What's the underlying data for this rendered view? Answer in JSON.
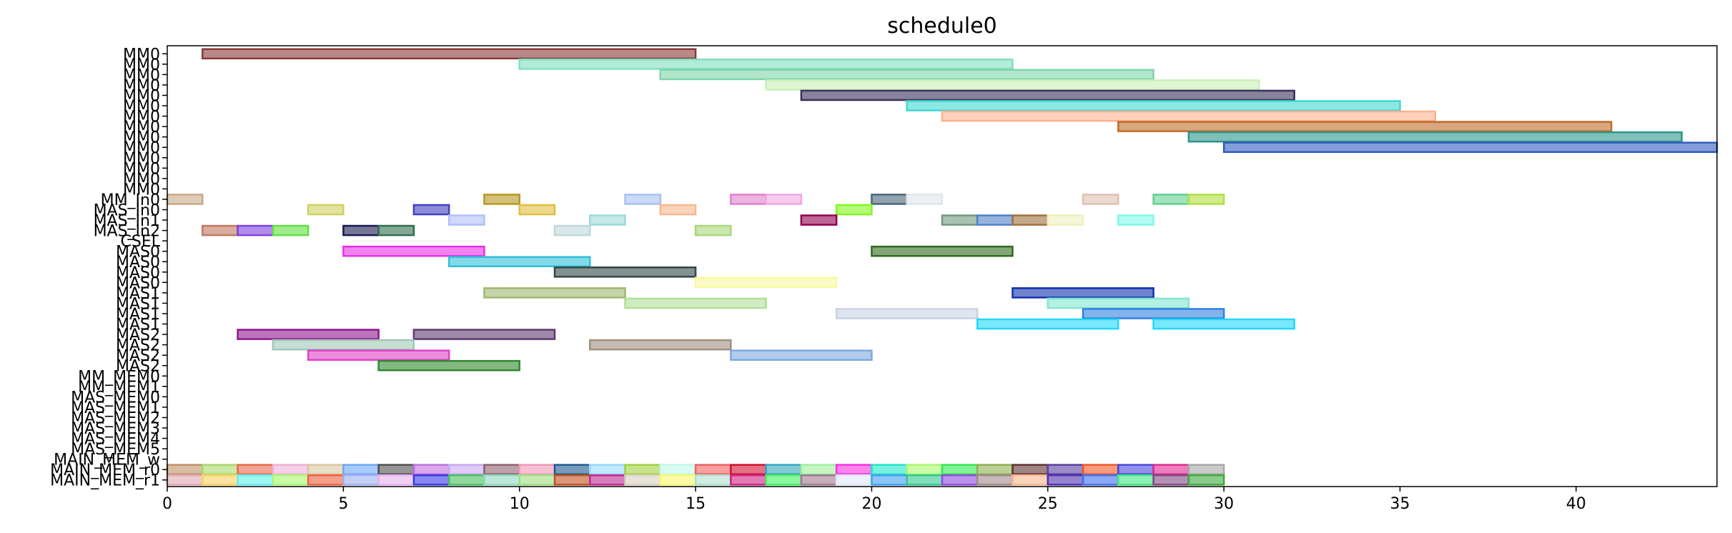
{
  "chart_data": {
    "type": "bar",
    "orientation": "horizontal",
    "title": "schedule0",
    "xlabel": "",
    "ylabel": "",
    "xlim": [
      0,
      44
    ],
    "xticks": [
      0,
      5,
      10,
      15,
      20,
      25,
      30,
      35,
      40
    ],
    "grid": false,
    "legend": "none",
    "categories": [
      "MM0",
      "MM0",
      "MM0",
      "MM0",
      "MM0",
      "MM0",
      "MM0",
      "MM0",
      "MM0",
      "MM0",
      "MM0",
      "MM0",
      "MM0",
      "MM0",
      "MM_In0",
      "MAS_In0",
      "MAS_In1",
      "MAS_In2",
      "CSEL",
      "MAS0",
      "MAS0",
      "MAS0",
      "MAS0",
      "MAS1",
      "MAS1",
      "MAS1",
      "MAS1",
      "MAS2",
      "MAS2",
      "MAS2",
      "MAS2",
      "MM_MEM0",
      "MM_MEM1",
      "MAS_MEM0",
      "MAS_MEM1",
      "MAS_MEM2",
      "MAS_MEM3",
      "MAS_MEM4",
      "MAS_MEM5",
      "MAIN_MEM_w",
      "MAIN_MEM_r0",
      "MAIN_MEM_r1"
    ],
    "bars": [
      {
        "row": 0,
        "start": 1,
        "end": 15,
        "color": "#8b3a3a"
      },
      {
        "row": 1,
        "start": 10,
        "end": 24,
        "color": "#7fe0c0"
      },
      {
        "row": 2,
        "start": 14,
        "end": 28,
        "color": "#7ed6aa"
      },
      {
        "row": 3,
        "start": 17,
        "end": 31,
        "color": "#c8f0b8"
      },
      {
        "row": 4,
        "start": 18,
        "end": 32,
        "color": "#3a2f5a"
      },
      {
        "row": 5,
        "start": 21,
        "end": 35,
        "color": "#40d8d0"
      },
      {
        "row": 6,
        "start": 22,
        "end": 36,
        "color": "#ffb090"
      },
      {
        "row": 7,
        "start": 27,
        "end": 41,
        "color": "#c06a28"
      },
      {
        "row": 8,
        "start": 29,
        "end": 43,
        "color": "#2a9688"
      },
      {
        "row": 9,
        "start": 30,
        "end": 44,
        "color": "#2e5cc0"
      },
      {
        "row": 14,
        "start": 0,
        "end": 1,
        "color": "#c8a888"
      },
      {
        "row": 14,
        "start": 9,
        "end": 10,
        "color": "#b89820"
      },
      {
        "row": 14,
        "start": 13,
        "end": 14,
        "color": "#a8c0f0"
      },
      {
        "row": 14,
        "start": 16,
        "end": 17,
        "color": "#e080c8"
      },
      {
        "row": 14,
        "start": 17,
        "end": 18,
        "color": "#f0a8e0"
      },
      {
        "row": 14,
        "start": 20,
        "end": 21,
        "color": "#4a6478"
      },
      {
        "row": 14,
        "start": 21,
        "end": 22,
        "color": "#e0e4ec"
      },
      {
        "row": 14,
        "start": 26,
        "end": 27,
        "color": "#e0c0b0"
      },
      {
        "row": 14,
        "start": 28,
        "end": 29,
        "color": "#60d090"
      },
      {
        "row": 14,
        "start": 29,
        "end": 30,
        "color": "#b0e040"
      },
      {
        "row": 15,
        "start": 4,
        "end": 5,
        "color": "#d0d060"
      },
      {
        "row": 15,
        "start": 7,
        "end": 8,
        "color": "#4040c0"
      },
      {
        "row": 15,
        "start": 10,
        "end": 11,
        "color": "#e0c040"
      },
      {
        "row": 15,
        "start": 14,
        "end": 15,
        "color": "#f8b890"
      },
      {
        "row": 15,
        "start": 19,
        "end": 20,
        "color": "#80f820"
      },
      {
        "row": 16,
        "start": 8,
        "end": 9,
        "color": "#b0c0f8"
      },
      {
        "row": 16,
        "start": 12,
        "end": 13,
        "color": "#a0d8d8"
      },
      {
        "row": 16,
        "start": 18,
        "end": 19,
        "color": "#900050"
      },
      {
        "row": 16,
        "start": 22,
        "end": 23,
        "color": "#709880"
      },
      {
        "row": 16,
        "start": 23,
        "end": 24,
        "color": "#5080c8"
      },
      {
        "row": 16,
        "start": 24,
        "end": 25,
        "color": "#a07040"
      },
      {
        "row": 16,
        "start": 25,
        "end": 26,
        "color": "#f0f0c0"
      },
      {
        "row": 16,
        "start": 27,
        "end": 28,
        "color": "#80f8e8"
      },
      {
        "row": 17,
        "start": 1,
        "end": 2,
        "color": "#c07860"
      },
      {
        "row": 17,
        "start": 2,
        "end": 3,
        "color": "#8040e0"
      },
      {
        "row": 17,
        "start": 3,
        "end": 4,
        "color": "#60e040"
      },
      {
        "row": 17,
        "start": 5,
        "end": 6,
        "color": "#1a1a50"
      },
      {
        "row": 17,
        "start": 6,
        "end": 7,
        "color": "#307050"
      },
      {
        "row": 17,
        "start": 11,
        "end": 12,
        "color": "#c0d8d8"
      },
      {
        "row": 17,
        "start": 15,
        "end": 16,
        "color": "#a8d878"
      },
      {
        "row": 19,
        "start": 5,
        "end": 9,
        "color": "#e830e8"
      },
      {
        "row": 19,
        "start": 20,
        "end": 24,
        "color": "#306a20"
      },
      {
        "row": 20,
        "start": 8,
        "end": 12,
        "color": "#30c0d8"
      },
      {
        "row": 21,
        "start": 11,
        "end": 15,
        "color": "#304848"
      },
      {
        "row": 22,
        "start": 15,
        "end": 19,
        "color": "#f8f8a0"
      },
      {
        "row": 23,
        "start": 9,
        "end": 13,
        "color": "#a0b870"
      },
      {
        "row": 23,
        "start": 24,
        "end": 28,
        "color": "#1030b0"
      },
      {
        "row": 24,
        "start": 13,
        "end": 17,
        "color": "#b0e098"
      },
      {
        "row": 24,
        "start": 25,
        "end": 29,
        "color": "#80e8d0"
      },
      {
        "row": 25,
        "start": 19,
        "end": 23,
        "color": "#c8d4e4"
      },
      {
        "row": 25,
        "start": 26,
        "end": 30,
        "color": "#3080e0"
      },
      {
        "row": 26,
        "start": 23,
        "end": 27,
        "color": "#20d8f8"
      },
      {
        "row": 26,
        "start": 28,
        "end": 32,
        "color": "#20d8f8"
      },
      {
        "row": 27,
        "start": 2,
        "end": 6,
        "color": "#901890"
      },
      {
        "row": 27,
        "start": 7,
        "end": 11,
        "color": "#603870"
      },
      {
        "row": 28,
        "start": 3,
        "end": 7,
        "color": "#a0c8b8"
      },
      {
        "row": 28,
        "start": 12,
        "end": 16,
        "color": "#a09080"
      },
      {
        "row": 29,
        "start": 4,
        "end": 8,
        "color": "#e040c8"
      },
      {
        "row": 29,
        "start": 16,
        "end": 20,
        "color": "#80a8e0"
      },
      {
        "row": 30,
        "start": 6,
        "end": 10,
        "color": "#308830"
      },
      {
        "row": 40,
        "start": 0,
        "end": 1,
        "color": "#c09068"
      },
      {
        "row": 40,
        "start": 1,
        "end": 2,
        "color": "#a8d868"
      },
      {
        "row": 40,
        "start": 2,
        "end": 3,
        "color": "#e86848"
      },
      {
        "row": 40,
        "start": 3,
        "end": 4,
        "color": "#f0b0d8"
      },
      {
        "row": 40,
        "start": 4,
        "end": 5,
        "color": "#d8c8a0"
      },
      {
        "row": 40,
        "start": 5,
        "end": 6,
        "color": "#70a8f8"
      },
      {
        "row": 40,
        "start": 6,
        "end": 7,
        "color": "#505050"
      },
      {
        "row": 40,
        "start": 7,
        "end": 8,
        "color": "#c070e0"
      },
      {
        "row": 40,
        "start": 8,
        "end": 9,
        "color": "#c8a8f0"
      },
      {
        "row": 40,
        "start": 9,
        "end": 10,
        "color": "#906070"
      },
      {
        "row": 40,
        "start": 10,
        "end": 11,
        "color": "#f098b8"
      },
      {
        "row": 40,
        "start": 11,
        "end": 12,
        "color": "#205890"
      },
      {
        "row": 40,
        "start": 12,
        "end": 13,
        "color": "#98d8f8"
      },
      {
        "row": 40,
        "start": 13,
        "end": 14,
        "color": "#a0d040"
      },
      {
        "row": 40,
        "start": 14,
        "end": 15,
        "color": "#c0f8e8"
      },
      {
        "row": 40,
        "start": 15,
        "end": 16,
        "color": "#f06060"
      },
      {
        "row": 40,
        "start": 16,
        "end": 17,
        "color": "#d01030"
      },
      {
        "row": 40,
        "start": 17,
        "end": 18,
        "color": "#30a8c0"
      },
      {
        "row": 40,
        "start": 18,
        "end": 19,
        "color": "#a0f0a0"
      },
      {
        "row": 40,
        "start": 19,
        "end": 20,
        "color": "#f830e0"
      },
      {
        "row": 40,
        "start": 20,
        "end": 21,
        "color": "#20e8c8"
      },
      {
        "row": 40,
        "start": 21,
        "end": 22,
        "color": "#a8f870"
      },
      {
        "row": 40,
        "start": 22,
        "end": 23,
        "color": "#30e850"
      },
      {
        "row": 40,
        "start": 23,
        "end": 24,
        "color": "#90b050"
      },
      {
        "row": 40,
        "start": 24,
        "end": 25,
        "color": "#603030"
      },
      {
        "row": 40,
        "start": 25,
        "end": 26,
        "color": "#5840a0"
      },
      {
        "row": 40,
        "start": 26,
        "end": 27,
        "color": "#f05828"
      },
      {
        "row": 40,
        "start": 27,
        "end": 28,
        "color": "#4848e0"
      },
      {
        "row": 40,
        "start": 28,
        "end": 29,
        "color": "#e02890"
      },
      {
        "row": 40,
        "start": 29,
        "end": 30,
        "color": "#a8a8a8"
      },
      {
        "row": 41,
        "start": 0,
        "end": 1,
        "color": "#e0a8b0"
      },
      {
        "row": 41,
        "start": 1,
        "end": 2,
        "color": "#f8d060"
      },
      {
        "row": 41,
        "start": 2,
        "end": 3,
        "color": "#60f0f0"
      },
      {
        "row": 41,
        "start": 3,
        "end": 4,
        "color": "#a8f870"
      },
      {
        "row": 41,
        "start": 4,
        "end": 5,
        "color": "#f06040"
      },
      {
        "row": 41,
        "start": 5,
        "end": 6,
        "color": "#a0b0f0"
      },
      {
        "row": 41,
        "start": 6,
        "end": 7,
        "color": "#e8b0f0"
      },
      {
        "row": 41,
        "start": 7,
        "end": 8,
        "color": "#3838e8"
      },
      {
        "row": 41,
        "start": 8,
        "end": 9,
        "color": "#48c060"
      },
      {
        "row": 41,
        "start": 9,
        "end": 10,
        "color": "#90d8c0"
      },
      {
        "row": 41,
        "start": 10,
        "end": 11,
        "color": "#a0e080"
      },
      {
        "row": 41,
        "start": 11,
        "end": 12,
        "color": "#c05020"
      },
      {
        "row": 41,
        "start": 12,
        "end": 13,
        "color": "#c02890"
      },
      {
        "row": 41,
        "start": 13,
        "end": 14,
        "color": "#d8d0c0"
      },
      {
        "row": 41,
        "start": 14,
        "end": 15,
        "color": "#f8f870"
      },
      {
        "row": 41,
        "start": 15,
        "end": 16,
        "color": "#b0e0d0"
      },
      {
        "row": 41,
        "start": 16,
        "end": 17,
        "color": "#d02080"
      },
      {
        "row": 41,
        "start": 17,
        "end": 18,
        "color": "#40f060"
      },
      {
        "row": 41,
        "start": 18,
        "end": 19,
        "color": "#a07890"
      },
      {
        "row": 41,
        "start": 19,
        "end": 20,
        "color": "#e0e8f8"
      },
      {
        "row": 41,
        "start": 20,
        "end": 21,
        "color": "#40a0f0"
      },
      {
        "row": 41,
        "start": 21,
        "end": 22,
        "color": "#30c890"
      },
      {
        "row": 41,
        "start": 22,
        "end": 23,
        "color": "#9048e0"
      },
      {
        "row": 41,
        "start": 23,
        "end": 24,
        "color": "#a08888"
      },
      {
        "row": 41,
        "start": 24,
        "end": 25,
        "color": "#f8b890"
      },
      {
        "row": 41,
        "start": 25,
        "end": 26,
        "color": "#5030b0"
      },
      {
        "row": 41,
        "start": 26,
        "end": 27,
        "color": "#4070f0"
      },
      {
        "row": 41,
        "start": 27,
        "end": 28,
        "color": "#40e880"
      },
      {
        "row": 41,
        "start": 28,
        "end": 29,
        "color": "#804880"
      },
      {
        "row": 41,
        "start": 29,
        "end": 30,
        "color": "#40a840"
      }
    ]
  }
}
